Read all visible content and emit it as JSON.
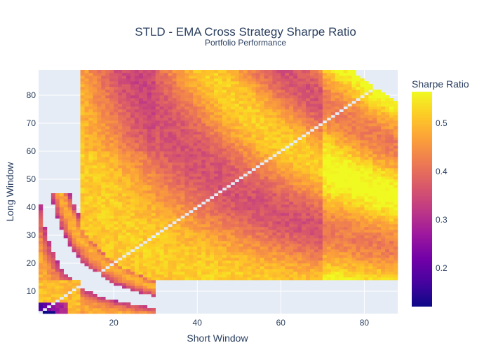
{
  "chart_data": {
    "type": "heatmap",
    "title": "STLD - EMA Cross Strategy Sharpe Ratio",
    "subtitle": "Portfolio Performance",
    "xlabel": "Short Window",
    "ylabel": "Long Window",
    "xlim": [
      2,
      88
    ],
    "ylim": [
      2,
      89
    ],
    "x_ticks": [
      20,
      40,
      60,
      80
    ],
    "y_ticks": [
      10,
      20,
      30,
      40,
      50,
      60,
      70,
      80
    ],
    "colorbar": {
      "title": "Sharpe Ratio",
      "min": 0.12,
      "max": 0.565,
      "ticks": [
        0.2,
        0.3,
        0.4,
        0.5
      ],
      "colorscale": [
        "#0d0887",
        "#46039f",
        "#7201a8",
        "#9c179e",
        "#bd3786",
        "#d8576b",
        "#ed7953",
        "#fb9f3a",
        "#fdca26",
        "#f0f921"
      ]
    },
    "grid": true,
    "note_values": "Sharpe ratio for each (short, long) window pair; NaN where long <= short or not tested",
    "sample_values": [
      {
        "short": 5,
        "long": 5,
        "sharpe": 0.13
      },
      {
        "short": 8,
        "long": 3,
        "sharpe": 0.16
      },
      {
        "short": 10,
        "long": 8,
        "sharpe": 0.52
      },
      {
        "short": 15,
        "long": 10,
        "sharpe": 0.48
      },
      {
        "short": 20,
        "long": 25,
        "sharpe": 0.33
      },
      {
        "short": 25,
        "long": 60,
        "sharpe": 0.5
      },
      {
        "short": 40,
        "long": 55,
        "sharpe": 0.38
      },
      {
        "short": 60,
        "long": 45,
        "sharpe": 0.52
      },
      {
        "short": 80,
        "long": 30,
        "sharpe": 0.5
      },
      {
        "short": 85,
        "long": 18,
        "sharpe": 0.54
      }
    ]
  },
  "colors": {
    "plot_bg": "#e5ecf6",
    "grid": "#ffffff",
    "text": "#2a3f5f"
  }
}
